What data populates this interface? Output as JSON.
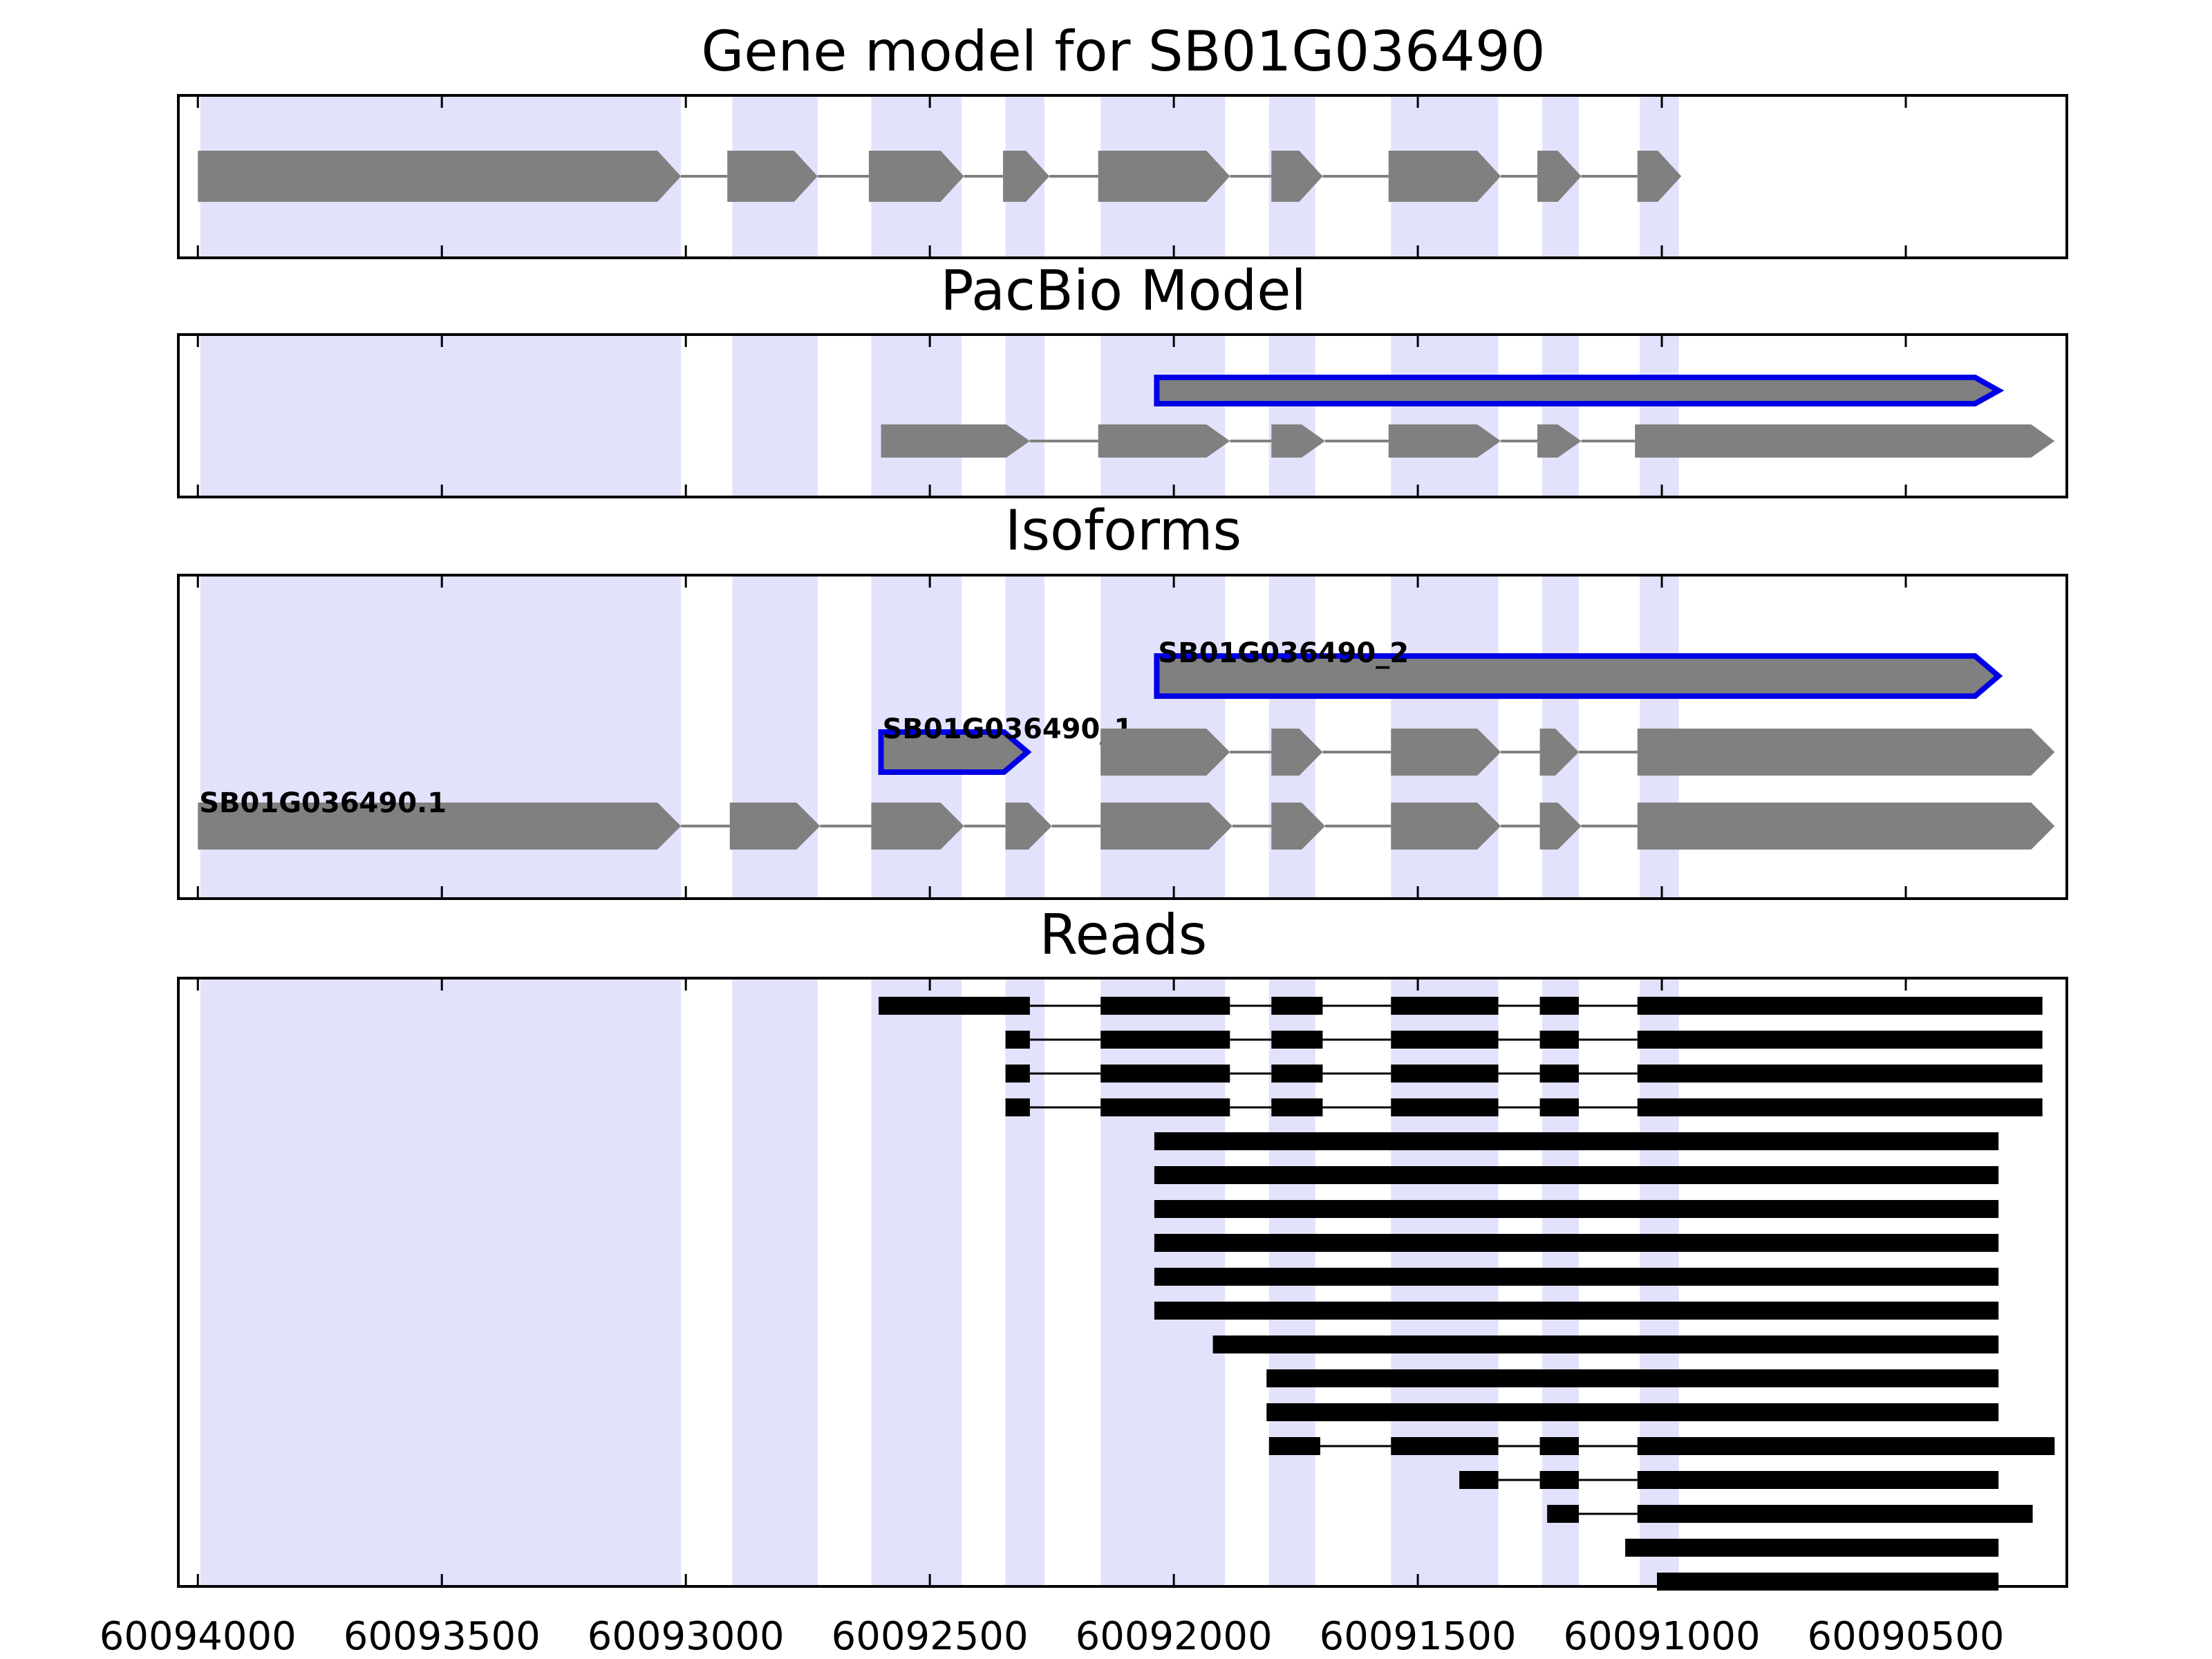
{
  "chart_data": {
    "type": "gene-structure",
    "x_axis": {
      "reversed": true,
      "range": [
        60094040,
        60090170
      ],
      "ticks": [
        60094000,
        60093500,
        60093000,
        60092500,
        60092000,
        60091500,
        60091000,
        60090500
      ],
      "tick_labels": [
        "60094000",
        "60093500",
        "60093000",
        "60092500",
        "60092000",
        "60091500",
        "60091000",
        "60090500"
      ]
    },
    "colors": {
      "highlight": "#e2e2fc",
      "exon_fill": "#808080",
      "isoform_outline": "#0000e6",
      "read_fill": "#000000",
      "intron_line": "#808080"
    },
    "highlight_regions": [
      [
        60093995,
        60093010
      ],
      [
        60092905,
        60092730
      ],
      [
        60092620,
        60092435
      ],
      [
        60092345,
        60092265
      ],
      [
        60092150,
        60091895
      ],
      [
        60091805,
        60091710
      ],
      [
        60091555,
        60091335
      ],
      [
        60091245,
        60091170
      ],
      [
        60091045,
        60090965
      ]
    ],
    "panels": [
      {
        "title": "Gene model for SB01G036490",
        "rows": [
          {
            "label": "",
            "outlined": false,
            "exons": [
              [
                60094000,
                60093010
              ],
              [
                60092915,
                60092730
              ],
              [
                60092625,
                60092430
              ],
              [
                60092350,
                60092255
              ],
              [
                60092155,
                60091885
              ],
              [
                60091800,
                60091695
              ],
              [
                60091560,
                60091330
              ],
              [
                60091255,
                60091165
              ],
              [
                60091050,
                60090960
              ]
            ]
          }
        ]
      },
      {
        "title": "PacBio Model",
        "rows": [
          {
            "label": "",
            "outlined": true,
            "exons": [
              [
                60092035,
                60090310
              ]
            ]
          },
          {
            "label": "",
            "outlined": false,
            "exons": [
              [
                60092600,
                60092295
              ],
              [
                60092155,
                60091885
              ],
              [
                60091800,
                60091690
              ],
              [
                60091560,
                60091330
              ],
              [
                60091255,
                60091165
              ],
              [
                60091055,
                60090195
              ]
            ]
          }
        ]
      },
      {
        "title": "Isoforms",
        "rows": [
          {
            "label": "SB01G036490_2",
            "outlined": true,
            "exons": [
              [
                60092035,
                60090310
              ]
            ]
          },
          {
            "label": "SB01G036490_1",
            "outlined": true,
            "exons": [
              [
                60092600,
                60092300
              ]
            ]
          },
          {
            "label": "",
            "outlined": false,
            "exons": [
              [
                60092150,
                60091885
              ],
              [
                60091800,
                60091695
              ],
              [
                60091555,
                60091330
              ],
              [
                60091250,
                60091170
              ],
              [
                60091050,
                60090195
              ]
            ]
          },
          {
            "label": "SB01G036490.1",
            "outlined": false,
            "exons": [
              [
                60094000,
                60093010
              ],
              [
                60092910,
                60092725
              ],
              [
                60092620,
                60092430
              ],
              [
                60092345,
                60092250
              ],
              [
                60092150,
                60091880
              ],
              [
                60091800,
                60091690
              ],
              [
                60091555,
                60091330
              ],
              [
                60091250,
                60091165
              ],
              [
                60091050,
                60090195
              ]
            ]
          }
        ]
      },
      {
        "title": "Reads",
        "reads": [
          [
            [
              60092605,
              60092295
            ],
            [
              60092150,
              60091885
            ],
            [
              60091800,
              60091695
            ],
            [
              60091555,
              60091335
            ],
            [
              60091250,
              60091170
            ],
            [
              60091050,
              60090220
            ]
          ],
          [
            [
              60092345,
              60092295
            ],
            [
              60092150,
              60091885
            ],
            [
              60091800,
              60091695
            ],
            [
              60091555,
              60091335
            ],
            [
              60091250,
              60091170
            ],
            [
              60091050,
              60090220
            ]
          ],
          [
            [
              60092345,
              60092295
            ],
            [
              60092150,
              60091885
            ],
            [
              60091800,
              60091695
            ],
            [
              60091555,
              60091335
            ],
            [
              60091250,
              60091170
            ],
            [
              60091050,
              60090220
            ]
          ],
          [
            [
              60092345,
              60092295
            ],
            [
              60092150,
              60091885
            ],
            [
              60091800,
              60091695
            ],
            [
              60091555,
              60091335
            ],
            [
              60091250,
              60091170
            ],
            [
              60091050,
              60090220
            ]
          ],
          [
            [
              60092040,
              60090310
            ]
          ],
          [
            [
              60092040,
              60090310
            ]
          ],
          [
            [
              60092040,
              60090310
            ]
          ],
          [
            [
              60092040,
              60090310
            ]
          ],
          [
            [
              60092040,
              60090310
            ]
          ],
          [
            [
              60092040,
              60090310
            ]
          ],
          [
            [
              60091920,
              60090310
            ]
          ],
          [
            [
              60091810,
              60090310
            ]
          ],
          [
            [
              60091810,
              60090310
            ]
          ],
          [
            [
              60091805,
              60091700
            ],
            [
              60091555,
              60091335
            ],
            [
              60091250,
              60091170
            ],
            [
              60091050,
              60090195
            ]
          ],
          [
            [
              60091415,
              60091335
            ],
            [
              60091250,
              60091170
            ],
            [
              60091050,
              60090310
            ]
          ],
          [
            [
              60091235,
              60091170
            ],
            [
              60091050,
              60090240
            ]
          ],
          [
            [
              60091075,
              60090310
            ]
          ],
          [
            [
              60091010,
              60090310
            ]
          ]
        ]
      }
    ]
  }
}
